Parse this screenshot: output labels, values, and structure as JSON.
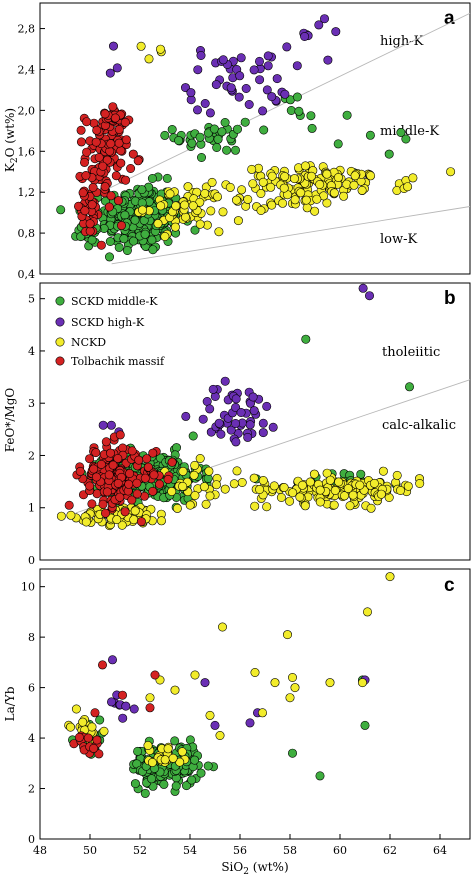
{
  "colors": {
    "SCKD middle-K": "#3fae3f",
    "SCKD high-K": "#6a2fb4",
    "NCKD": "#f2ec2b",
    "Tolbachik massif": "#d42222"
  },
  "chart_data": [
    {
      "type": "scatter",
      "panel": "a",
      "ylabel": "K2O (wt%)",
      "xlim": [
        48,
        66
      ],
      "ylim": [
        0.4,
        3.05
      ],
      "yticks": [
        "0,4",
        "0,8",
        "1,2",
        "1,6",
        "2,0",
        "2,4",
        "2,8"
      ],
      "xticks": [],
      "dividers": [
        {
          "x1": 49.5,
          "y1": 1.08,
          "x2": 66,
          "y2": 2.95
        },
        {
          "x1": 51,
          "y1": 0.5,
          "x2": 66,
          "y2": 1.06
        }
      ],
      "region_labels": [
        "high-K",
        "middle-K",
        "low-K"
      ],
      "series": [
        {
          "name": "SCKD middle-K",
          "clusters": [
            {
              "cx": 52.2,
              "cy": 0.95,
              "sx": 1.1,
              "sy": 0.22,
              "n": 260
            },
            {
              "cx": 55.3,
              "cy": 1.75,
              "sx": 1.1,
              "sy": 0.18,
              "n": 35
            },
            {
              "cx": 58.5,
              "cy": 1.95,
              "sx": 1.5,
              "sy": 0.12,
              "n": 10
            },
            {
              "cx": 62.0,
              "cy": 1.65,
              "sx": 1.5,
              "sy": 0.15,
              "n": 6
            },
            {
              "cx": 50.0,
              "cy": 0.85,
              "sx": 0.5,
              "sy": 0.15,
              "n": 20
            }
          ]
        },
        {
          "name": "SCKD high-K",
          "clusters": [
            {
              "cx": 56.3,
              "cy": 2.3,
              "sx": 1.4,
              "sy": 0.22,
              "n": 45
            },
            {
              "cx": 59.5,
              "cy": 2.75,
              "sx": 0.8,
              "sy": 0.12,
              "n": 8
            },
            {
              "cx": 51.1,
              "cy": 2.4,
              "sx": 0.25,
              "sy": 0.12,
              "n": 3
            }
          ]
        },
        {
          "name": "NCKD",
          "clusters": [
            {
              "cx": 54.0,
              "cy": 1.05,
              "sx": 1.1,
              "sy": 0.15,
              "n": 60
            },
            {
              "cx": 60.0,
              "cy": 1.3,
              "sx": 2.3,
              "sy": 0.1,
              "n": 110
            },
            {
              "cx": 58.0,
              "cy": 1.12,
              "sx": 1.5,
              "sy": 0.08,
              "n": 30
            },
            {
              "cx": 52.5,
              "cy": 2.62,
              "sx": 0.5,
              "sy": 0.08,
              "n": 4
            }
          ]
        },
        {
          "name": "Tolbachik massif",
          "clusters": [
            {
              "cx": 50.8,
              "cy": 1.55,
              "sx": 0.6,
              "sy": 0.3,
              "n": 110
            },
            {
              "cx": 50.0,
              "cy": 1.0,
              "sx": 0.4,
              "sy": 0.15,
              "n": 35
            },
            {
              "cx": 51.0,
              "cy": 1.95,
              "sx": 0.4,
              "sy": 0.1,
              "n": 25
            }
          ]
        }
      ]
    },
    {
      "type": "scatter",
      "panel": "b",
      "ylabel": "FeO*/MgO",
      "xlim": [
        48,
        66
      ],
      "ylim": [
        0,
        5.3
      ],
      "yticks": [
        "0",
        "1",
        "2",
        "3",
        "4",
        "5"
      ],
      "xticks": [],
      "dividers": [
        {
          "x1": 49.5,
          "y1": 0.9,
          "x2": 66,
          "y2": 3.45
        }
      ],
      "region_labels": [
        "tholeiitic",
        "calc-alkalic"
      ],
      "legend": [
        "SCKD middle-K",
        "SCKD high-K",
        "NCKD",
        "Tolbachik massif"
      ],
      "series": [
        {
          "name": "SCKD middle-K",
          "clusters": [
            {
              "cx": 52.8,
              "cy": 1.6,
              "sx": 1.3,
              "sy": 0.3,
              "n": 260
            },
            {
              "cx": 60.0,
              "cy": 1.5,
              "sx": 3.0,
              "sy": 0.15,
              "n": 20
            },
            {
              "cx": 59.2,
              "cy": 4.15,
              "sx": 0.2,
              "sy": 0.05,
              "n": 1
            },
            {
              "cx": 63.5,
              "cy": 3.35,
              "sx": 0.2,
              "sy": 0.05,
              "n": 1
            }
          ]
        },
        {
          "name": "SCKD high-K",
          "clusters": [
            {
              "cx": 56.3,
              "cy": 2.8,
              "sx": 1.2,
              "sy": 0.4,
              "n": 50
            },
            {
              "cx": 61.5,
              "cy": 5.1,
              "sx": 0.4,
              "sy": 0.08,
              "n": 2
            },
            {
              "cx": 51.0,
              "cy": 2.5,
              "sx": 0.3,
              "sy": 0.15,
              "n": 3
            }
          ]
        },
        {
          "name": "NCKD",
          "clusters": [
            {
              "cx": 51.5,
              "cy": 0.85,
              "sx": 1.3,
              "sy": 0.12,
              "n": 70
            },
            {
              "cx": 60.5,
              "cy": 1.35,
              "sx": 2.3,
              "sy": 0.18,
              "n": 140
            },
            {
              "cx": 54.5,
              "cy": 1.4,
              "sx": 1.2,
              "sy": 0.3,
              "n": 30
            }
          ]
        },
        {
          "name": "Tolbachik massif",
          "clusters": [
            {
              "cx": 51.0,
              "cy": 1.6,
              "sx": 0.8,
              "sy": 0.4,
              "n": 170
            },
            {
              "cx": 52.8,
              "cy": 1.8,
              "sx": 0.5,
              "sy": 0.3,
              "n": 20
            }
          ]
        }
      ]
    },
    {
      "type": "scatter",
      "panel": "c",
      "ylabel": "La/Yb",
      "xlabel": "SiO2 (wt%)",
      "xlim": [
        48,
        65.2
      ],
      "ylim": [
        0,
        10.7
      ],
      "yticks": [
        "0",
        "2",
        "4",
        "6",
        "8",
        "10"
      ],
      "xticks": [
        "48",
        "50",
        "52",
        "54",
        "56",
        "58",
        "60",
        "62",
        "64"
      ],
      "dividers": [],
      "series": [
        {
          "name": "SCKD middle-K",
          "clusters": [
            {
              "cx": 53.0,
              "cy": 2.9,
              "sx": 0.9,
              "sy": 0.55,
              "n": 170
            },
            {
              "cx": 50.2,
              "cy": 4.0,
              "sx": 0.4,
              "sy": 0.4,
              "n": 15
            }
          ],
          "points": [
            [
              58.1,
              3.4
            ],
            [
              59.2,
              2.5
            ],
            [
              61.0,
              4.5
            ],
            [
              60.9,
              6.3
            ]
          ]
        },
        {
          "name": "SCKD high-K",
          "clusters": [
            {
              "cx": 51.0,
              "cy": 5.3,
              "sx": 0.5,
              "sy": 0.4,
              "n": 8
            }
          ],
          "points": [
            [
              50.9,
              7.1
            ],
            [
              54.6,
              6.2
            ],
            [
              55.0,
              4.5
            ],
            [
              56.4,
              4.6
            ],
            [
              56.7,
              5.0
            ],
            [
              61.0,
              6.3
            ]
          ]
        },
        {
          "name": "NCKD",
          "clusters": [
            {
              "cx": 49.8,
              "cy": 4.5,
              "sx": 0.4,
              "sy": 0.35,
              "n": 18
            },
            {
              "cx": 53.0,
              "cy": 3.3,
              "sx": 0.6,
              "sy": 0.35,
              "n": 20
            }
          ],
          "points": [
            [
              55.3,
              8.4
            ],
            [
              57.9,
              8.1
            ],
            [
              62.0,
              10.4
            ],
            [
              61.1,
              9.0
            ],
            [
              56.6,
              6.6
            ],
            [
              57.4,
              6.2
            ],
            [
              58.1,
              6.4
            ],
            [
              58.2,
              6.0
            ],
            [
              58.0,
              5.6
            ],
            [
              59.6,
              6.2
            ],
            [
              60.9,
              6.2
            ],
            [
              54.2,
              6.5
            ],
            [
              53.4,
              5.9
            ],
            [
              54.8,
              4.9
            ],
            [
              55.2,
              4.1
            ],
            [
              56.9,
              5.0
            ],
            [
              52.8,
              6.3
            ],
            [
              52.4,
              5.6
            ]
          ]
        },
        {
          "name": "Tolbachik massif",
          "clusters": [
            {
              "cx": 49.9,
              "cy": 3.7,
              "sx": 0.35,
              "sy": 0.3,
              "n": 14
            }
          ],
          "points": [
            [
              50.5,
              6.9
            ],
            [
              52.6,
              6.5
            ],
            [
              51.3,
              5.7
            ],
            [
              50.2,
              5.0
            ],
            [
              52.4,
              5.2
            ]
          ]
        }
      ]
    }
  ]
}
